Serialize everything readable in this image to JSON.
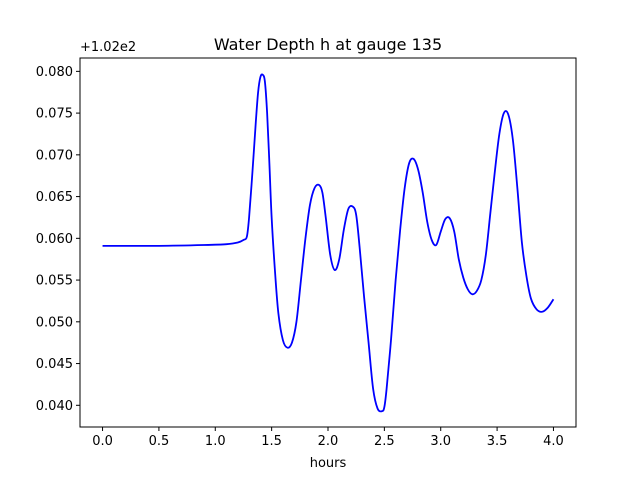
{
  "chart_data": {
    "type": "line",
    "title": "Water Depth h at gauge 135",
    "xlabel": "hours",
    "ylabel": "",
    "offset_text": "+1.02e2",
    "xlim": [
      -0.2,
      4.2
    ],
    "ylim": [
      0.0374,
      0.0816
    ],
    "xticks": [
      0.0,
      0.5,
      1.0,
      1.5,
      2.0,
      2.5,
      3.0,
      3.5,
      4.0
    ],
    "xtick_labels": [
      "0.0",
      "0.5",
      "1.0",
      "1.5",
      "2.0",
      "2.5",
      "3.0",
      "3.5",
      "4.0"
    ],
    "yticks": [
      0.04,
      0.045,
      0.05,
      0.055,
      0.06,
      0.065,
      0.07,
      0.075,
      0.08
    ],
    "ytick_labels": [
      "0.040",
      "0.045",
      "0.050",
      "0.055",
      "0.060",
      "0.065",
      "0.070",
      "0.075",
      "0.080"
    ],
    "grid": false,
    "legend": "none",
    "series": [
      {
        "color": "#0000ff",
        "x": [
          0.0,
          0.5,
          0.9,
          1.1,
          1.2,
          1.25,
          1.28,
          1.3,
          1.33,
          1.36,
          1.38,
          1.4,
          1.42,
          1.44,
          1.46,
          1.48,
          1.5,
          1.53,
          1.56,
          1.6,
          1.64,
          1.68,
          1.72,
          1.76,
          1.8,
          1.84,
          1.88,
          1.92,
          1.95,
          1.98,
          2.02,
          2.06,
          2.1,
          2.14,
          2.18,
          2.22,
          2.25,
          2.28,
          2.32,
          2.36,
          2.4,
          2.44,
          2.48,
          2.5,
          2.52,
          2.56,
          2.6,
          2.64,
          2.68,
          2.72,
          2.76,
          2.8,
          2.84,
          2.88,
          2.92,
          2.96,
          3.0,
          3.04,
          3.08,
          3.12,
          3.16,
          3.2,
          3.24,
          3.28,
          3.32,
          3.36,
          3.4,
          3.44,
          3.48,
          3.52,
          3.56,
          3.6,
          3.64,
          3.68,
          3.72,
          3.76,
          3.8,
          3.85,
          3.9,
          3.95,
          4.0
        ],
        "y": [
          0.0591,
          0.0591,
          0.0592,
          0.0593,
          0.0595,
          0.0598,
          0.0602,
          0.0625,
          0.068,
          0.074,
          0.0775,
          0.0793,
          0.0796,
          0.0788,
          0.075,
          0.069,
          0.0625,
          0.056,
          0.051,
          0.0478,
          0.0469,
          0.0475,
          0.05,
          0.055,
          0.06,
          0.064,
          0.066,
          0.0664,
          0.0655,
          0.0625,
          0.058,
          0.0562,
          0.0575,
          0.061,
          0.0635,
          0.0638,
          0.0628,
          0.059,
          0.053,
          0.0475,
          0.042,
          0.0396,
          0.0393,
          0.0398,
          0.042,
          0.048,
          0.055,
          0.061,
          0.066,
          0.069,
          0.0695,
          0.0682,
          0.0655,
          0.062,
          0.0598,
          0.0592,
          0.0608,
          0.0623,
          0.0624,
          0.0608,
          0.0575,
          0.0553,
          0.0539,
          0.0533,
          0.0537,
          0.055,
          0.058,
          0.063,
          0.068,
          0.0725,
          0.075,
          0.0748,
          0.0718,
          0.066,
          0.0595,
          0.0555,
          0.0528,
          0.0515,
          0.0512,
          0.0517,
          0.0527
        ]
      }
    ]
  }
}
